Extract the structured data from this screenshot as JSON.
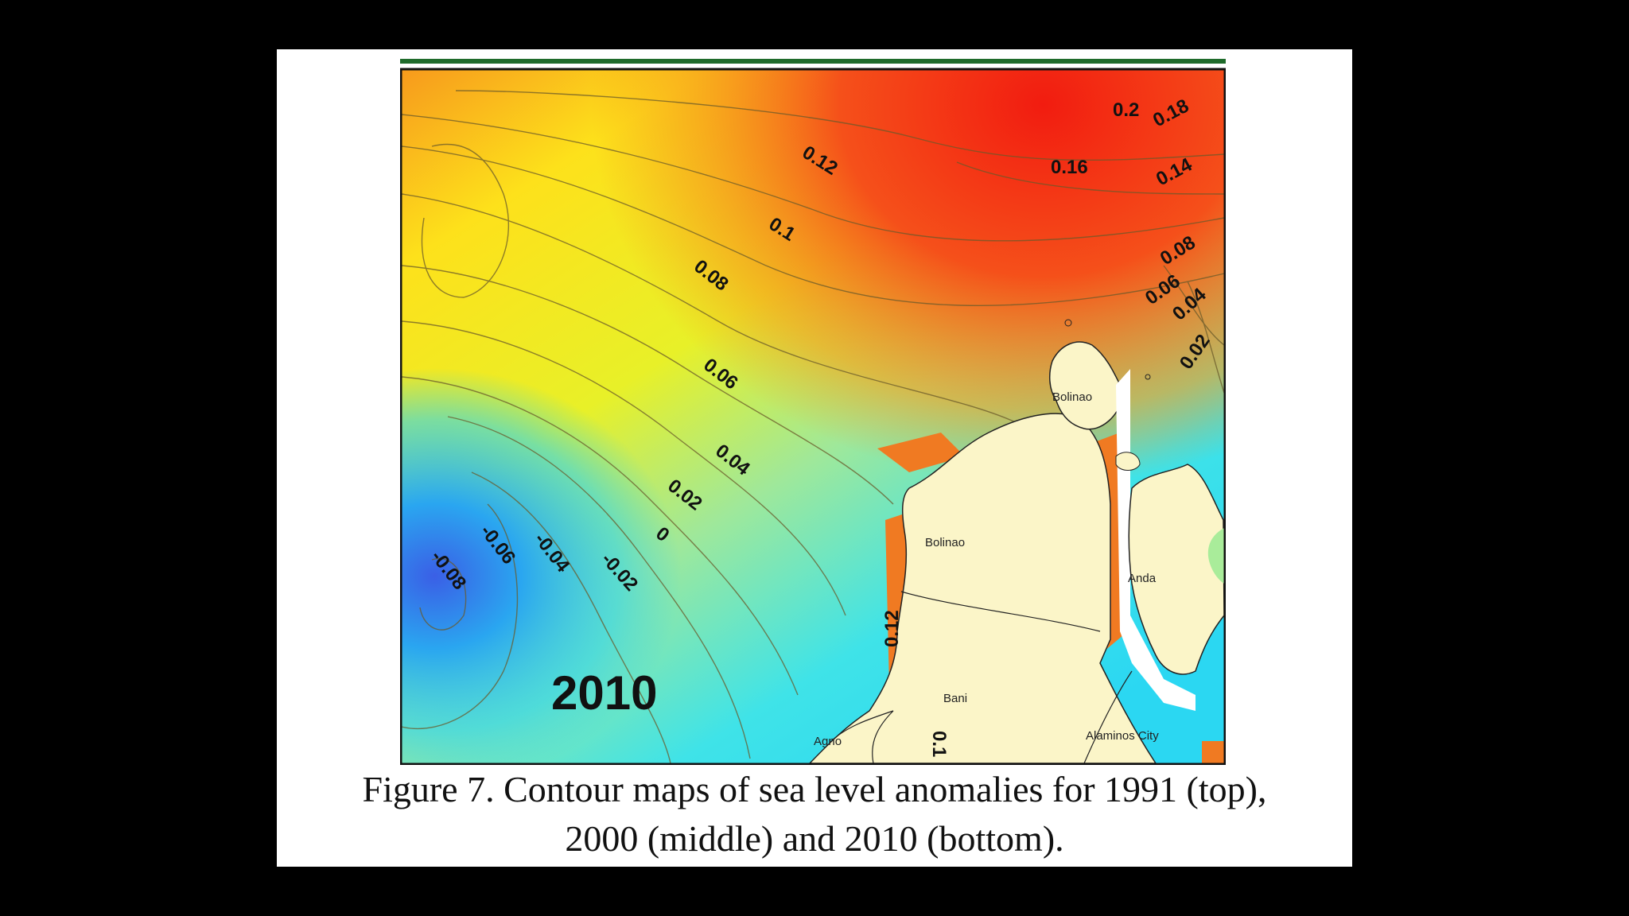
{
  "figure": {
    "year": "2010",
    "caption_line1": "Figure 7. Contour maps of sea level anomalies for 1991 (top),",
    "caption_line2": "2000 (middle) and 2010 (bottom)."
  },
  "contour_labels": [
    {
      "text": "0.2"
    },
    {
      "text": "0.18"
    },
    {
      "text": "0.16"
    },
    {
      "text": "0.14"
    },
    {
      "text": "0.12"
    },
    {
      "text": "0.1"
    },
    {
      "text": "0.08"
    },
    {
      "text": "0.08"
    },
    {
      "text": "0.06"
    },
    {
      "text": "0.06"
    },
    {
      "text": "0.04"
    },
    {
      "text": "0.04"
    },
    {
      "text": "0.02"
    },
    {
      "text": "0.02"
    },
    {
      "text": "0"
    },
    {
      "text": "-0.02"
    },
    {
      "text": "-0.04"
    },
    {
      "text": "-0.06"
    },
    {
      "text": "-0.08"
    },
    {
      "text": "0.12"
    },
    {
      "text": "0.1"
    }
  ],
  "places": {
    "bolinao_north": "Bolinao",
    "bolinao": "Bolinao",
    "anda": "Anda",
    "bani": "Bani",
    "agno": "Agno",
    "alaminos": "Alaminos City"
  },
  "colors": {
    "red": "#f22a12",
    "orange": "#f79a1c",
    "yellow": "#fff717",
    "cyan": "#2de6f2",
    "blue": "#3f78e8",
    "land": "#fbf5c8"
  }
}
